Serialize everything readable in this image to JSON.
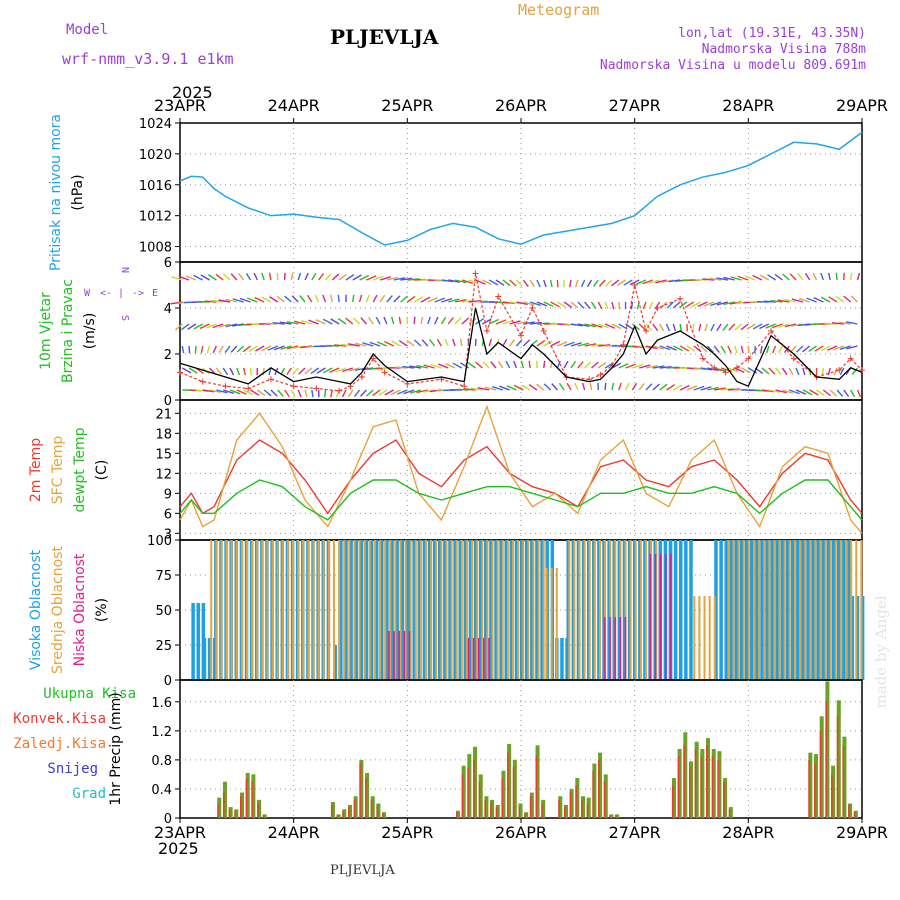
{
  "header": {
    "model_label": "Model",
    "model_name": "wrf-nmm_v3.9.1 e1km",
    "station_title": "PLJEVLJA",
    "product_title": "Meteogram",
    "location": "lon,lat (19.31E, 43.35N)",
    "altitude": "Nadmorska Visina 788m",
    "model_altitude": "Nadmorska Visina u modelu 809.691m",
    "year": "2025",
    "watermark": "made by Angel",
    "footer_station": "PLJEVLJA"
  },
  "colors": {
    "pressure": "#22a4e6",
    "t2m": "#ee3a2f",
    "tsfc": "#e6a23c",
    "dewpt": "#20c020",
    "cloud_high": "#1ea0e6",
    "cloud_mid": "#e6a23c",
    "cloud_low": "#dd1f88",
    "total_precip": "#6aa223",
    "conv_precip": "#ee3a2f",
    "wind_speed": "#000000",
    "gust": "#ee3a2f"
  },
  "chart_data": [
    {
      "type": "line",
      "panel": "pressure",
      "ylabel_lines": [
        "Pritisak na nivou mora",
        "(hPa)"
      ],
      "ylim": [
        1006,
        1024
      ],
      "yticks": [
        1008,
        1012,
        1016,
        1020,
        1024
      ],
      "x_days": [
        0,
        6
      ],
      "xticks": [
        "23APR",
        "24APR",
        "25APR",
        "26APR",
        "27APR",
        "28APR",
        "29APR"
      ],
      "grid": true,
      "series": [
        {
          "x": [
            0,
            0.1,
            0.2,
            0.3,
            0.4,
            0.6,
            0.8,
            1.0,
            1.2,
            1.4,
            1.6,
            1.8,
            2.0,
            2.2,
            2.4,
            2.6,
            2.8,
            3.0,
            3.2,
            3.4,
            3.6,
            3.8,
            4.0,
            4.2,
            4.4,
            4.6,
            4.8,
            5.0,
            5.2,
            5.4,
            5.6,
            5.8,
            6.0
          ],
          "y": [
            1016.5,
            1017.1,
            1017.0,
            1015.5,
            1014.5,
            1013,
            1012,
            1012.2,
            1011.8,
            1011.5,
            1009.8,
            1008.2,
            1008.8,
            1010.2,
            1011,
            1010.5,
            1009,
            1008.3,
            1009.5,
            1010,
            1010.5,
            1011,
            1012,
            1014.5,
            1016,
            1017,
            1017.6,
            1018.5,
            1020,
            1021.5,
            1021.3,
            1020.6,
            1022.8
          ]
        }
      ]
    },
    {
      "type": "line",
      "panel": "wind",
      "ylabel_lines": [
        "10m Vjetar",
        "Brzina i Pravac",
        "(m/s)"
      ],
      "compass": {
        "north": "N",
        "west": "W",
        "east": "E",
        "south": "S"
      },
      "ylim": [
        0,
        6
      ],
      "yticks": [
        0,
        2,
        4,
        6
      ],
      "x_days": [
        0,
        6
      ],
      "grid": true,
      "series": [
        {
          "kind": "speed",
          "x": [
            0,
            0.2,
            0.4,
            0.6,
            0.8,
            1.0,
            1.2,
            1.4,
            1.5,
            1.6,
            1.7,
            1.8,
            2.0,
            2.3,
            2.5,
            2.6,
            2.7,
            2.8,
            3.0,
            3.1,
            3.2,
            3.4,
            3.6,
            3.7,
            3.8,
            3.9,
            4.0,
            4.1,
            4.2,
            4.4,
            4.6,
            4.7,
            4.8,
            4.9,
            5.0,
            5.2,
            5.4,
            5.6,
            5.8,
            5.9,
            6.0
          ],
          "y": [
            1.6,
            1.3,
            1.0,
            0.7,
            1.4,
            0.8,
            1.0,
            0.8,
            0.7,
            1.2,
            2.0,
            1.5,
            0.8,
            1.0,
            0.8,
            4.0,
            2.0,
            2.5,
            1.8,
            2.4,
            2.0,
            1.0,
            0.8,
            0.9,
            1.4,
            2.0,
            3.2,
            2.0,
            2.6,
            3.0,
            2.4,
            2.0,
            1.5,
            0.8,
            0.6,
            2.8,
            2.0,
            1.0,
            0.9,
            1.4,
            1.2
          ]
        },
        {
          "kind": "gust",
          "x": [
            0,
            0.2,
            0.4,
            0.6,
            0.8,
            1.0,
            1.2,
            1.4,
            1.5,
            1.6,
            1.7,
            1.8,
            2.0,
            2.3,
            2.5,
            2.6,
            2.7,
            2.8,
            3.0,
            3.1,
            3.2,
            3.4,
            3.6,
            3.7,
            3.8,
            3.9,
            4.0,
            4.1,
            4.2,
            4.4,
            4.6,
            4.7,
            4.8,
            4.9,
            5.0,
            5.2,
            5.4,
            5.6,
            5.8,
            5.9,
            6.0
          ],
          "y": [
            1.2,
            0.8,
            0.6,
            0.5,
            0.9,
            0.6,
            0.5,
            0.4,
            0.6,
            1.0,
            1.8,
            1.2,
            0.7,
            0.9,
            0.6,
            5.5,
            3.0,
            4.5,
            2.8,
            4.0,
            3.0,
            1.0,
            0.9,
            1.1,
            1.5,
            2.4,
            5.0,
            3.0,
            4.0,
            4.4,
            1.8,
            1.4,
            1.2,
            1.4,
            1.8,
            3.0,
            1.8,
            1.0,
            1.3,
            1.8,
            1.3
          ]
        }
      ]
    },
    {
      "type": "line",
      "panel": "temperature",
      "ylabel_lines": [
        "2m Temp",
        "SFC Temp",
        "dewpt Temp",
        "(C)"
      ],
      "ylim": [
        2,
        23
      ],
      "yticks": [
        3,
        6,
        9,
        12,
        15,
        18,
        21
      ],
      "x_days": [
        0,
        6
      ],
      "grid": true,
      "series": [
        {
          "name": "2m Temp",
          "x": [
            0,
            0.1,
            0.2,
            0.3,
            0.5,
            0.7,
            0.9,
            1.1,
            1.3,
            1.5,
            1.7,
            1.9,
            2.1,
            2.3,
            2.5,
            2.7,
            2.9,
            3.1,
            3.3,
            3.5,
            3.7,
            3.9,
            4.1,
            4.3,
            4.5,
            4.7,
            4.9,
            5.1,
            5.3,
            5.5,
            5.7,
            5.9,
            6.0
          ],
          "y": [
            7,
            9,
            6,
            7,
            14,
            17,
            15,
            11,
            6,
            11,
            15,
            17,
            12,
            10,
            14,
            16,
            12,
            10,
            9,
            7,
            13,
            14,
            11,
            10,
            13,
            14,
            11,
            7,
            12,
            15,
            14,
            8,
            6
          ]
        },
        {
          "name": "SFC Temp",
          "x": [
            0,
            0.1,
            0.2,
            0.3,
            0.5,
            0.7,
            0.9,
            1.1,
            1.3,
            1.5,
            1.7,
            1.9,
            2.1,
            2.3,
            2.5,
            2.7,
            2.9,
            3.1,
            3.3,
            3.5,
            3.7,
            3.9,
            4.1,
            4.3,
            4.5,
            4.7,
            4.9,
            5.1,
            5.3,
            5.5,
            5.7,
            5.9,
            6.0
          ],
          "y": [
            5,
            8,
            4,
            5,
            17,
            21,
            16,
            8,
            4,
            11,
            19,
            20,
            9,
            5,
            13,
            22,
            12,
            7,
            9,
            6,
            14,
            17,
            9,
            7,
            14,
            17,
            9,
            4,
            13,
            16,
            15,
            5,
            3
          ]
        },
        {
          "name": "dewpt Temp",
          "x": [
            0,
            0.1,
            0.2,
            0.3,
            0.5,
            0.7,
            0.9,
            1.1,
            1.3,
            1.5,
            1.7,
            1.9,
            2.1,
            2.3,
            2.5,
            2.7,
            2.9,
            3.1,
            3.3,
            3.5,
            3.7,
            3.9,
            4.1,
            4.3,
            4.5,
            4.7,
            4.9,
            5.1,
            5.3,
            5.5,
            5.7,
            5.9,
            6.0
          ],
          "y": [
            6,
            8,
            6,
            6,
            9,
            11,
            10,
            7,
            5,
            9,
            11,
            11,
            9,
            8,
            9,
            10,
            10,
            9,
            8,
            7,
            9,
            9,
            10,
            9,
            9,
            10,
            9,
            6,
            9,
            11,
            11,
            7,
            5
          ]
        }
      ]
    },
    {
      "type": "bar",
      "panel": "cloud",
      "ylabel_lines": [
        "Visoka Oblacnost",
        "Srednja Oblacnost",
        "Niska Oblacnost",
        "(%)"
      ],
      "ylim": [
        0,
        100
      ],
      "yticks": [
        0,
        25,
        50,
        75,
        100
      ],
      "x_days": [
        0,
        6
      ],
      "grid": true,
      "series": [
        {
          "name": "Visoka Oblacnost",
          "segments_x": [
            [
              0.1,
              0.2
            ],
            [
              0.2,
              0.3
            ],
            [
              0.3,
              1.2
            ],
            [
              1.2,
              1.3
            ],
            [
              1.35,
              1.4
            ],
            [
              1.4,
              2.0
            ],
            [
              2.0,
              3.3
            ],
            [
              3.3,
              3.4
            ],
            [
              3.4,
              4.3
            ],
            [
              4.3,
              4.5
            ],
            [
              4.5,
              4.7
            ],
            [
              4.7,
              5.9
            ],
            [
              5.9,
              6.0
            ]
          ],
          "segments_y": [
            55,
            30,
            100,
            100,
            25,
            100,
            100,
            30,
            100,
            100,
            0,
            100,
            60
          ]
        },
        {
          "name": "Srednja Oblacnost",
          "segments_x": [
            [
              0.25,
              3.2
            ],
            [
              3.2,
              3.3
            ],
            [
              3.4,
              4.2
            ],
            [
              4.5,
              4.7
            ],
            [
              4.8,
              6.0
            ]
          ],
          "segments_y": [
            100,
            80,
            100,
            60,
            100
          ]
        },
        {
          "name": "Niska Oblacnost",
          "segments_x": [
            [
              1.8,
              2.0
            ],
            [
              2.5,
              2.7
            ],
            [
              3.7,
              3.9
            ],
            [
              4.1,
              4.3
            ]
          ],
          "segments_y": [
            35,
            30,
            45,
            90
          ]
        }
      ]
    },
    {
      "type": "bar",
      "panel": "precip",
      "ylabel_lines": [
        "1hr Precip (mm)"
      ],
      "legend": [
        "Ukupna Kisa",
        "Konvek.Kisa",
        "Zaledj.Kisa",
        "Snijeg",
        "Grad"
      ],
      "ylim": [
        0,
        1.9
      ],
      "yticks": [
        0,
        0.4,
        0.8,
        1.2,
        1.6
      ],
      "x_days": [
        0,
        6
      ],
      "xticks": [
        "23APR",
        "24APR",
        "25APR",
        "26APR",
        "27APR",
        "28APR",
        "29APR"
      ],
      "grid": true,
      "x": [
        0.35,
        0.4,
        0.45,
        0.5,
        0.55,
        0.6,
        0.65,
        0.7,
        0.75,
        1.35,
        1.4,
        1.45,
        1.5,
        1.55,
        1.6,
        1.65,
        1.7,
        1.75,
        1.8,
        2.45,
        2.5,
        2.55,
        2.6,
        2.65,
        2.7,
        2.75,
        2.8,
        2.85,
        2.9,
        2.95,
        3.0,
        3.05,
        3.1,
        3.15,
        3.2,
        3.35,
        3.4,
        3.45,
        3.5,
        3.55,
        3.6,
        3.65,
        3.7,
        3.75,
        3.8,
        3.85,
        4.35,
        4.4,
        4.45,
        4.5,
        4.55,
        4.6,
        4.65,
        4.7,
        4.75,
        4.8,
        4.85,
        5.55,
        5.6,
        5.65,
        5.7,
        5.75,
        5.8,
        5.85,
        5.9,
        5.95
      ],
      "total": [
        0.28,
        0.5,
        0.15,
        0.12,
        0.35,
        0.62,
        0.6,
        0.25,
        0.05,
        0.22,
        0.05,
        0.12,
        0.18,
        0.3,
        0.8,
        0.62,
        0.3,
        0.2,
        0.08,
        0.1,
        0.72,
        0.88,
        0.98,
        0.6,
        0.3,
        0.25,
        0.18,
        0.65,
        1.02,
        0.8,
        0.2,
        0.08,
        0.35,
        1.0,
        0.25,
        0.3,
        0.18,
        0.4,
        0.55,
        0.3,
        0.28,
        0.75,
        0.9,
        0.6,
        0.05,
        0.05,
        0.55,
        0.95,
        1.18,
        0.78,
        1.05,
        0.95,
        1.1,
        0.95,
        0.92,
        0.55,
        0.15,
        0.9,
        0.88,
        1.4,
        1.88,
        0.72,
        1.62,
        1.12,
        0.2,
        0.1
      ],
      "convective": [
        0.2,
        0.35,
        0.12,
        0.1,
        0.3,
        0.55,
        0.5,
        0.2,
        0.04,
        0.18,
        0.04,
        0.1,
        0.15,
        0.25,
        0.75,
        0.55,
        0.25,
        0.18,
        0.06,
        0.08,
        0.6,
        0.7,
        0.8,
        0.5,
        0.25,
        0.2,
        0.15,
        0.55,
        0.9,
        0.7,
        0.15,
        0.06,
        0.3,
        0.85,
        0.2,
        0.25,
        0.15,
        0.35,
        0.45,
        0.25,
        0.2,
        0.65,
        0.8,
        0.5,
        0.04,
        0.04,
        0.45,
        0.85,
        1.0,
        0.7,
        0.95,
        0.85,
        1.0,
        0.85,
        0.8,
        0.5,
        0.12,
        0.8,
        0.75,
        1.2,
        1.6,
        0.6,
        1.4,
        1.0,
        0.18,
        0.08
      ]
    }
  ]
}
